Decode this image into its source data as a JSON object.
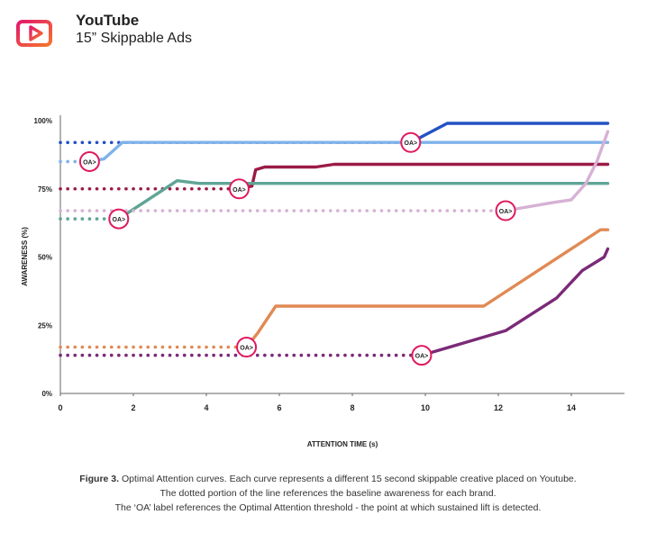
{
  "header": {
    "brand": "YouTube",
    "subtitle": "15” Skippable Ads",
    "logo_icon": "youtube-play-icon"
  },
  "chart_data": {
    "type": "line",
    "title": "",
    "xlabel": "ATTENTION TIME (s)",
    "ylabel": "AWARENESS (%)",
    "xlim": [
      0,
      15.8
    ],
    "ylim": [
      0,
      100
    ],
    "x_ticks": [
      "0",
      "2",
      "4",
      "6",
      "8",
      "10",
      "12",
      "14"
    ],
    "y_ticks": [
      "0%",
      "25%",
      "50%",
      "75%",
      "100%"
    ],
    "grid": false,
    "legend": "none",
    "annotation_label": "OA>",
    "series": [
      {
        "color": "#2451c4",
        "baseline": 92,
        "oa_x": 9.6,
        "solid": [
          [
            9.6,
            92
          ],
          [
            10.6,
            99
          ],
          [
            15,
            99
          ]
        ]
      },
      {
        "color": "#7fb2ea",
        "baseline": 85,
        "oa_x": 0.8,
        "solid": [
          [
            0.8,
            85
          ],
          [
            1.2,
            86
          ],
          [
            1.7,
            92
          ],
          [
            9.6,
            92
          ],
          [
            15,
            92
          ]
        ]
      },
      {
        "color": "#9b1b46",
        "baseline": 75,
        "oa_x": 4.9,
        "solid": [
          [
            4.9,
            75
          ],
          [
            5.25,
            76
          ],
          [
            5.35,
            82
          ],
          [
            5.6,
            83
          ],
          [
            7,
            83
          ],
          [
            7.5,
            84
          ],
          [
            15,
            84
          ]
        ]
      },
      {
        "color": "#5fa595",
        "baseline": 64,
        "oa_x": 1.6,
        "solid": [
          [
            1.6,
            64
          ],
          [
            3.2,
            78
          ],
          [
            3.8,
            77
          ],
          [
            15,
            77
          ]
        ]
      },
      {
        "color": "#d6b1d5",
        "baseline": 67,
        "oa_x": 12.2,
        "solid": [
          [
            12.2,
            67
          ],
          [
            13.5,
            70
          ],
          [
            14,
            71
          ],
          [
            14.4,
            77
          ],
          [
            14.7,
            85
          ],
          [
            15,
            96
          ]
        ]
      },
      {
        "color": "#e08a54",
        "baseline": 17,
        "oa_x": 5.1,
        "solid": [
          [
            5.1,
            17
          ],
          [
            5.4,
            22
          ],
          [
            5.9,
            32
          ],
          [
            11.6,
            32
          ],
          [
            14.8,
            60
          ],
          [
            15,
            60
          ]
        ]
      },
      {
        "color": "#7b2a78",
        "baseline": 14,
        "oa_x": 9.9,
        "solid": [
          [
            9.9,
            14
          ],
          [
            12.2,
            23
          ],
          [
            13.6,
            35
          ],
          [
            14.3,
            45
          ],
          [
            14.9,
            50
          ],
          [
            15,
            53
          ]
        ]
      }
    ]
  },
  "caption": {
    "line1_bold": "Figure 3.",
    "line1_rest": " Optimal Attention curves. Each curve represents a different 15 second skippable creative placed on Youtube.",
    "line2": "The dotted portion of the line references the baseline awareness for each brand.",
    "line3": "The ‘OA’ label references the Optimal Attention threshold - the point at which sustained lift is detected."
  }
}
